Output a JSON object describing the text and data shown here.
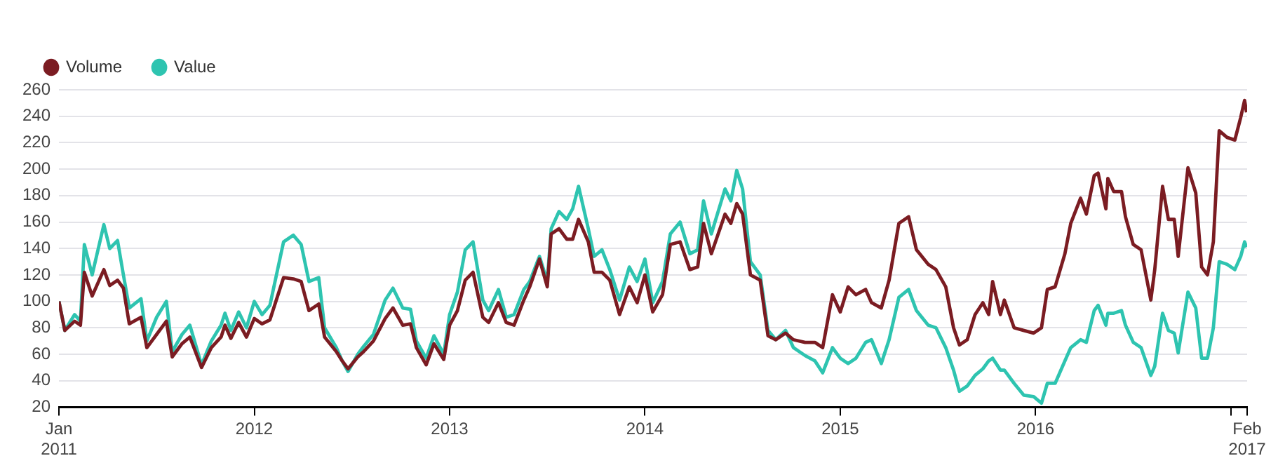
{
  "chart_data": {
    "type": "line",
    "legend": "top left",
    "grid": "y",
    "marker": "none",
    "line_style": "solid",
    "xlim": [
      2011,
      2017.083
    ],
    "ylim": [
      20,
      260
    ],
    "xticks": [
      {
        "value": 2011,
        "label": "Jan\n2011"
      },
      2012,
      2013,
      2014,
      2015,
      2016,
      {
        "value": 2017,
        "label": null
      },
      {
        "value": 2017.083,
        "label": "Feb\n2017"
      }
    ],
    "yticks": [
      20,
      40,
      60,
      80,
      100,
      120,
      140,
      160,
      180,
      200,
      220,
      240,
      260
    ],
    "x": [
      2011.0,
      2011.03,
      2011.08,
      2011.11,
      2011.13,
      2011.17,
      2011.23,
      2011.26,
      2011.3,
      2011.33,
      2011.36,
      2011.42,
      2011.45,
      2011.5,
      2011.55,
      2011.58,
      2011.63,
      2011.67,
      2011.73,
      2011.78,
      2011.83,
      2011.85,
      2011.88,
      2011.92,
      2011.96,
      2012.0,
      2012.04,
      2012.08,
      2012.15,
      2012.2,
      2012.24,
      2012.28,
      2012.33,
      2012.36,
      2012.42,
      2012.45,
      2012.48,
      2012.53,
      2012.56,
      2012.61,
      2012.67,
      2012.71,
      2012.76,
      2012.8,
      2012.83,
      2012.88,
      2012.92,
      2012.97,
      2013.0,
      2013.04,
      2013.08,
      2013.12,
      2013.17,
      2013.2,
      2013.25,
      2013.29,
      2013.33,
      2013.38,
      2013.41,
      2013.46,
      2013.5,
      2013.52,
      2013.56,
      2013.6,
      2013.63,
      2013.66,
      2013.71,
      2013.74,
      2013.78,
      2013.82,
      2013.87,
      2013.92,
      2013.96,
      2014.0,
      2014.04,
      2014.09,
      2014.13,
      2014.18,
      2014.23,
      2014.27,
      2014.3,
      2014.34,
      2014.41,
      2014.44,
      2014.47,
      2014.5,
      2014.54,
      2014.59,
      2014.63,
      2014.67,
      2014.72,
      2014.76,
      2014.82,
      2014.87,
      2014.91,
      2014.96,
      2015.0,
      2015.04,
      2015.08,
      2015.13,
      2015.16,
      2015.21,
      2015.25,
      2015.3,
      2015.35,
      2015.39,
      2015.45,
      2015.49,
      2015.54,
      2015.58,
      2015.61,
      2015.65,
      2015.69,
      2015.73,
      2015.76,
      2015.78,
      2015.82,
      2015.84,
      2015.89,
      2015.94,
      2015.99,
      2016.03,
      2016.06,
      2016.1,
      2016.15,
      2016.18,
      2016.23,
      2016.26,
      2016.3,
      2016.32,
      2016.36,
      2016.37,
      2016.4,
      2016.44,
      2016.46,
      2016.5,
      2016.54,
      2016.59,
      2016.61,
      2016.65,
      2016.68,
      2016.71,
      2016.73,
      2016.78,
      2016.82,
      2016.85,
      2016.88,
      2016.91,
      2016.94,
      2016.98,
      2017.02,
      2017.05,
      2017.07,
      2017.08
    ],
    "series": [
      {
        "name": "Volume",
        "color": "#7b1c22",
        "values": [
          100,
          78,
          85,
          82,
          122,
          104,
          124,
          112,
          116,
          110,
          83,
          88,
          65,
          75,
          85,
          58,
          68,
          73,
          50,
          65,
          73,
          82,
          72,
          84,
          73,
          87,
          83,
          86,
          118,
          117,
          115,
          93,
          98,
          73,
          62,
          55,
          49,
          58,
          62,
          70,
          87,
          95,
          82,
          83,
          65,
          52,
          68,
          56,
          82,
          93,
          116,
          122,
          88,
          84,
          99,
          84,
          82,
          101,
          111,
          132,
          111,
          151,
          155,
          147,
          147,
          162,
          145,
          122,
          122,
          116,
          90,
          111,
          99,
          120,
          92,
          105,
          143,
          145,
          124,
          126,
          159,
          136,
          166,
          159,
          174,
          166,
          120,
          116,
          74,
          71,
          76,
          71,
          69,
          69,
          65,
          105,
          92,
          111,
          105,
          109,
          99,
          95,
          116,
          159,
          164,
          139,
          128,
          124,
          111,
          80,
          67,
          71,
          90,
          99,
          90,
          115,
          90,
          101,
          80,
          78,
          76,
          80,
          109,
          111,
          136,
          159,
          178,
          166,
          195,
          197,
          170,
          193,
          183,
          183,
          164,
          143,
          139,
          101,
          124,
          187,
          162,
          162,
          134,
          201,
          182,
          126,
          120,
          145,
          229,
          224,
          222,
          239,
          252,
          243
        ]
      },
      {
        "name": "Value",
        "color": "#2ec4b0",
        "values": [
          100,
          78,
          90,
          85,
          143,
          120,
          158,
          140,
          146,
          120,
          95,
          102,
          70,
          88,
          100,
          62,
          75,
          82,
          52,
          70,
          82,
          91,
          78,
          92,
          80,
          100,
          90,
          97,
          145,
          150,
          143,
          115,
          118,
          80,
          65,
          55,
          47,
          60,
          66,
          75,
          101,
          110,
          95,
          94,
          70,
          57,
          74,
          60,
          90,
          107,
          139,
          145,
          101,
          93,
          109,
          88,
          90,
          109,
          115,
          134,
          115,
          155,
          168,
          162,
          170,
          187,
          155,
          134,
          139,
          124,
          101,
          126,
          115,
          132,
          99,
          115,
          151,
          160,
          136,
          139,
          176,
          151,
          185,
          176,
          199,
          185,
          130,
          120,
          78,
          71,
          78,
          65,
          59,
          55,
          46,
          65,
          57,
          53,
          57,
          69,
          71,
          53,
          71,
          103,
          109,
          93,
          82,
          80,
          65,
          48,
          32,
          36,
          44,
          49,
          55,
          57,
          48,
          48,
          38,
          29,
          28,
          23,
          38,
          38,
          55,
          65,
          71,
          69,
          93,
          97,
          82,
          91,
          91,
          93,
          82,
          69,
          65,
          44,
          51,
          91,
          78,
          76,
          61,
          107,
          95,
          57,
          57,
          80,
          130,
          128,
          124,
          134,
          145,
          141
        ]
      }
    ]
  }
}
